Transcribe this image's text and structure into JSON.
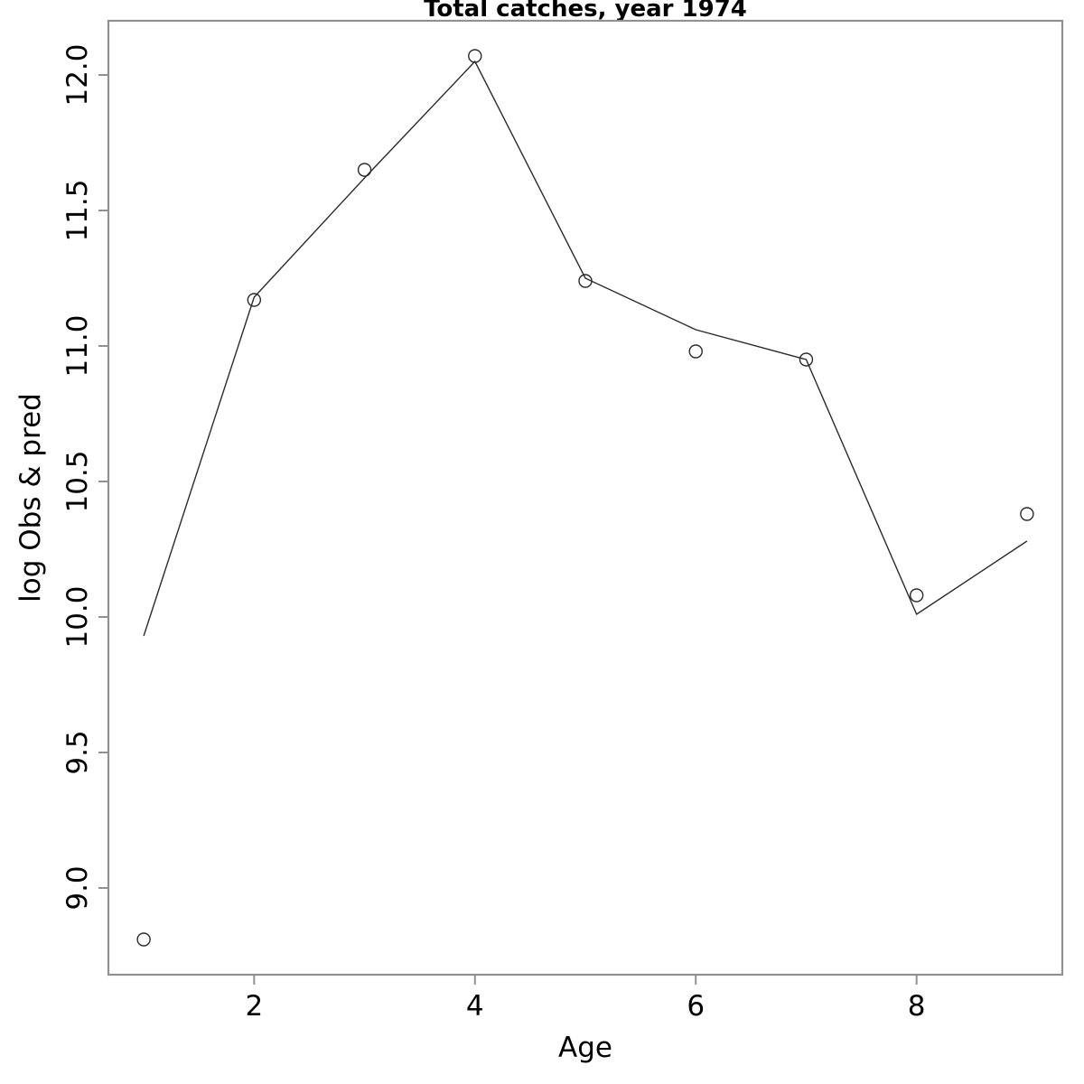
{
  "title": "Total catches, year 1974",
  "chart_data": {
    "type": "line",
    "title": "Total catches, year 1974",
    "xlabel": "Age",
    "ylabel": "log Obs & pred",
    "x": [
      1,
      2,
      3,
      4,
      5,
      6,
      7,
      8,
      9
    ],
    "series": [
      {
        "name": "observed",
        "style": "open-circle-points",
        "values": [
          8.81,
          11.17,
          11.65,
          12.07,
          11.24,
          10.98,
          10.95,
          10.08,
          10.38
        ]
      },
      {
        "name": "predicted",
        "style": "line",
        "values": [
          9.93,
          11.18,
          11.62,
          12.05,
          11.25,
          11.06,
          10.95,
          10.01,
          10.28
        ]
      }
    ],
    "xlim": [
      0.68,
      9.32
    ],
    "ylim": [
      8.68,
      12.2
    ],
    "xticks": [
      2,
      4,
      6,
      8
    ],
    "xtick_labels": [
      "2",
      "4",
      "6",
      "8"
    ],
    "yticks": [
      9.0,
      9.5,
      10.0,
      10.5,
      11.0,
      11.5,
      12.0
    ],
    "ytick_labels": [
      "9.0",
      "9.5",
      "10.0",
      "10.5",
      "11.0",
      "11.5",
      "12.0"
    ],
    "grid": false,
    "legend": "none",
    "colors": {
      "frame": "#919191",
      "data": "#2b2b2b",
      "text": "#000000",
      "background": "#ffffff"
    }
  }
}
